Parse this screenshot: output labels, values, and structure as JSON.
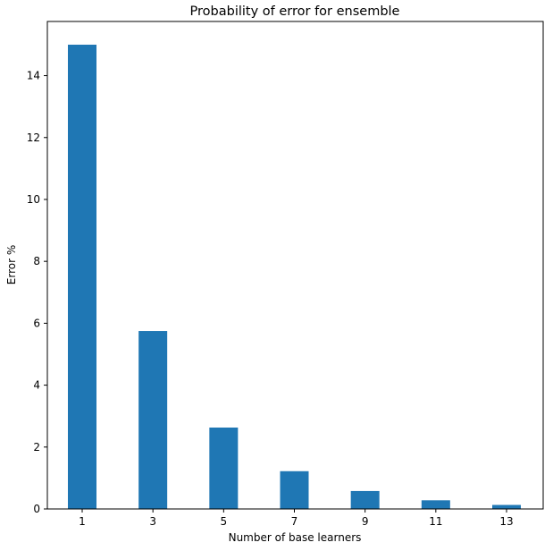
{
  "chart_data": {
    "type": "bar",
    "title": "Probability of error for ensemble",
    "xlabel": "Number of base learners",
    "ylabel": "Error %",
    "categories": [
      "1",
      "3",
      "5",
      "7",
      "9",
      "11",
      "13"
    ],
    "values": [
      15.0,
      5.75,
      2.63,
      1.22,
      0.58,
      0.28,
      0.13
    ],
    "yticks": [
      "0",
      "2",
      "4",
      "6",
      "8",
      "10",
      "12",
      "14"
    ],
    "ylim": [
      0,
      15.75
    ],
    "bar_color": "#1f77b4",
    "grid": false,
    "legend": "none"
  }
}
